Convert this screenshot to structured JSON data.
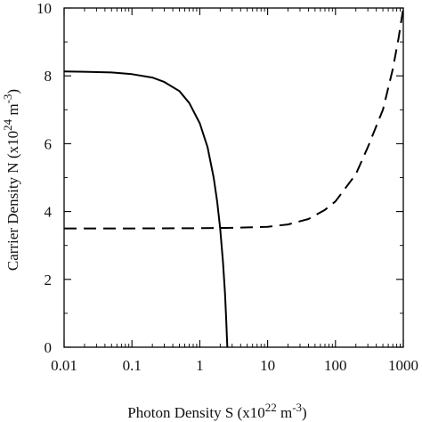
{
  "chart_data": {
    "type": "line",
    "xscale": "log",
    "xlim": [
      0.01,
      1000
    ],
    "ylim": [
      0,
      10
    ],
    "grid": false,
    "legend": "none",
    "x_ticks": [
      0.01,
      0.1,
      1,
      10,
      100,
      1000
    ],
    "x_tick_labels": [
      "0.01",
      "0.1",
      "1",
      "10",
      "100",
      "1000"
    ],
    "y_ticks": [
      0,
      2,
      4,
      6,
      8,
      10
    ],
    "y_tick_labels": [
      "0",
      "2",
      "4",
      "6",
      "8",
      "10"
    ],
    "xlabel": {
      "prefix": "Photon Density S (x10",
      "exp": "22",
      "mid": " m",
      "unit_exp": "-3",
      "suffix": ")"
    },
    "ylabel": {
      "prefix": "Carrier Density N (x10",
      "exp": "24",
      "mid": " m",
      "unit_exp": "-3",
      "suffix": ")"
    },
    "series": [
      {
        "style": "solid",
        "color": "#000000",
        "points": [
          [
            0.01,
            8.13
          ],
          [
            0.02,
            8.12
          ],
          [
            0.05,
            8.1
          ],
          [
            0.1,
            8.05
          ],
          [
            0.2,
            7.95
          ],
          [
            0.3,
            7.82
          ],
          [
            0.5,
            7.55
          ],
          [
            0.7,
            7.2
          ],
          [
            1.0,
            6.6
          ],
          [
            1.3,
            5.9
          ],
          [
            1.6,
            5.0
          ],
          [
            1.8,
            4.3
          ],
          [
            2.0,
            3.5
          ],
          [
            2.2,
            2.5
          ],
          [
            2.35,
            1.6
          ],
          [
            2.45,
            0.8
          ],
          [
            2.52,
            0.2
          ],
          [
            2.55,
            0.0
          ]
        ]
      },
      {
        "style": "dashed",
        "color": "#000000",
        "points": [
          [
            0.01,
            3.5
          ],
          [
            0.1,
            3.5
          ],
          [
            1,
            3.51
          ],
          [
            3,
            3.52
          ],
          [
            10,
            3.55
          ],
          [
            20,
            3.62
          ],
          [
            40,
            3.78
          ],
          [
            70,
            4.05
          ],
          [
            100,
            4.3
          ],
          [
            200,
            5.1
          ],
          [
            300,
            5.9
          ],
          [
            500,
            7.0
          ],
          [
            700,
            8.2
          ],
          [
            850,
            9.1
          ],
          [
            1000,
            10.0
          ]
        ]
      }
    ]
  }
}
